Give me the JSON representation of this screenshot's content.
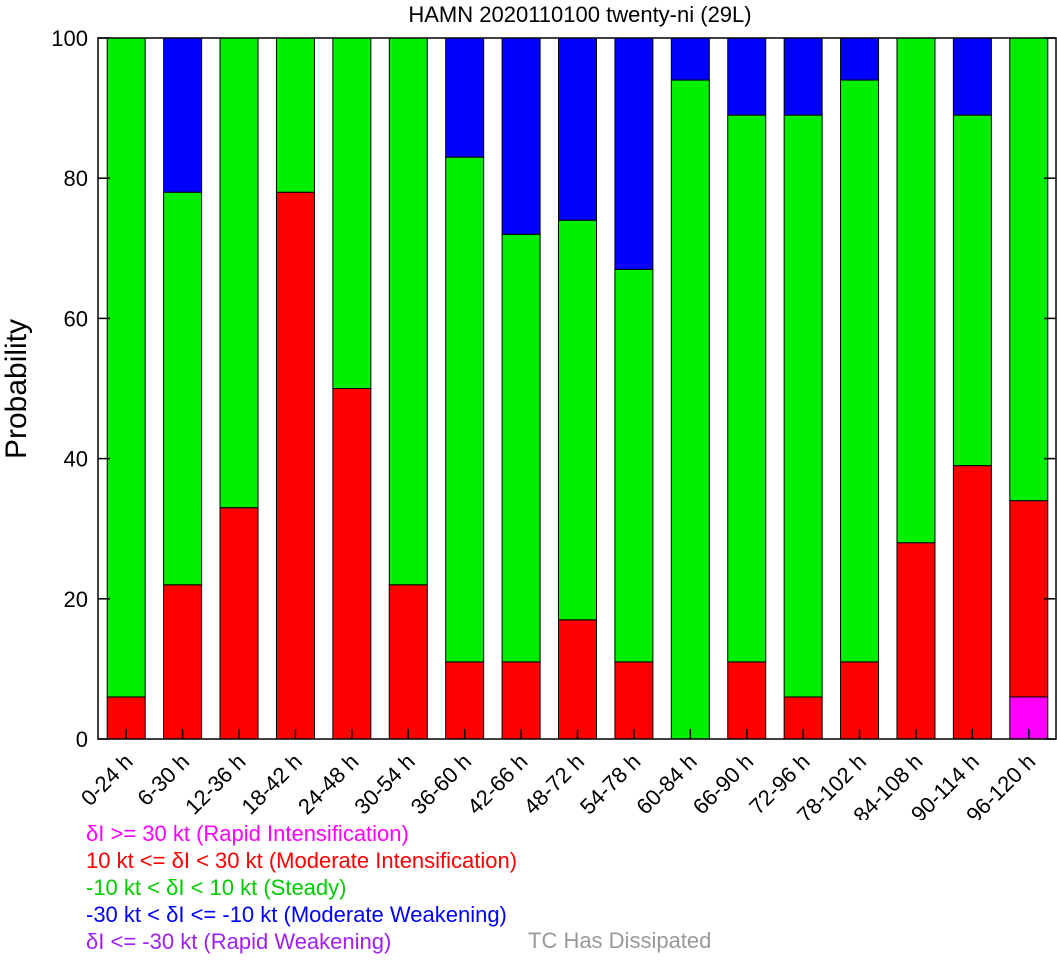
{
  "chart_data": {
    "type": "bar",
    "stacked": true,
    "title": "HAMN 2020110100 twenty-ni (29L)",
    "xlabel": "",
    "ylabel": "Probability",
    "ylim": [
      0,
      100
    ],
    "yticks": [
      "0",
      "20",
      "40",
      "60",
      "80",
      "100"
    ],
    "grid": false,
    "categories": [
      "0-24 h",
      "6-30 h",
      "12-36 h",
      "18-42 h",
      "24-48 h",
      "30-54 h",
      "36-60 h",
      "42-66 h",
      "48-72 h",
      "54-78 h",
      "60-84 h",
      "66-90 h",
      "72-96 h",
      "78-102 h",
      "84-108 h",
      "90-114 h",
      "96-120 h"
    ],
    "series": [
      {
        "key": "ri",
        "color": "#ff00ff",
        "values": [
          0,
          0,
          0,
          0,
          0,
          0,
          0,
          0,
          0,
          0,
          0,
          0,
          0,
          0,
          0,
          0,
          6
        ]
      },
      {
        "key": "mi",
        "color": "#ff0000",
        "values": [
          6,
          22,
          33,
          78,
          50,
          22,
          11,
          11,
          17,
          11,
          0,
          11,
          6,
          11,
          28,
          39,
          28
        ]
      },
      {
        "key": "steady",
        "color": "#00ee00",
        "values": [
          94,
          56,
          67,
          22,
          50,
          78,
          72,
          61,
          57,
          56,
          94,
          78,
          83,
          83,
          72,
          50,
          66
        ]
      },
      {
        "key": "mw",
        "color": "#0000ff",
        "values": [
          0,
          22,
          0,
          0,
          0,
          0,
          17,
          28,
          26,
          33,
          6,
          11,
          11,
          6,
          0,
          11,
          0
        ]
      },
      {
        "key": "rw",
        "color": "#a020f0",
        "values": [
          0,
          0,
          0,
          0,
          0,
          0,
          0,
          0,
          0,
          0,
          0,
          0,
          0,
          0,
          0,
          0,
          0
        ]
      }
    ]
  },
  "legend": {
    "ri": {
      "text": "δI >= 30 kt (Rapid Intensification)",
      "color": "#ff00ff"
    },
    "mi": {
      "text": "10 kt <= δI < 30 kt (Moderate Intensification)",
      "color": "#ff0000"
    },
    "steady": {
      "text": "-10 kt < δI < 10 kt (Steady)",
      "color": "#00cc00"
    },
    "mw": {
      "text": "-30 kt < δI <= -10 kt (Moderate Weakening)",
      "color": "#0000ff"
    },
    "rw": {
      "text": "δI <= -30 kt (Rapid Weakening)",
      "color": "#a020f0"
    },
    "dissipated": {
      "text": "TC Has Dissipated",
      "color": "#999999"
    }
  }
}
